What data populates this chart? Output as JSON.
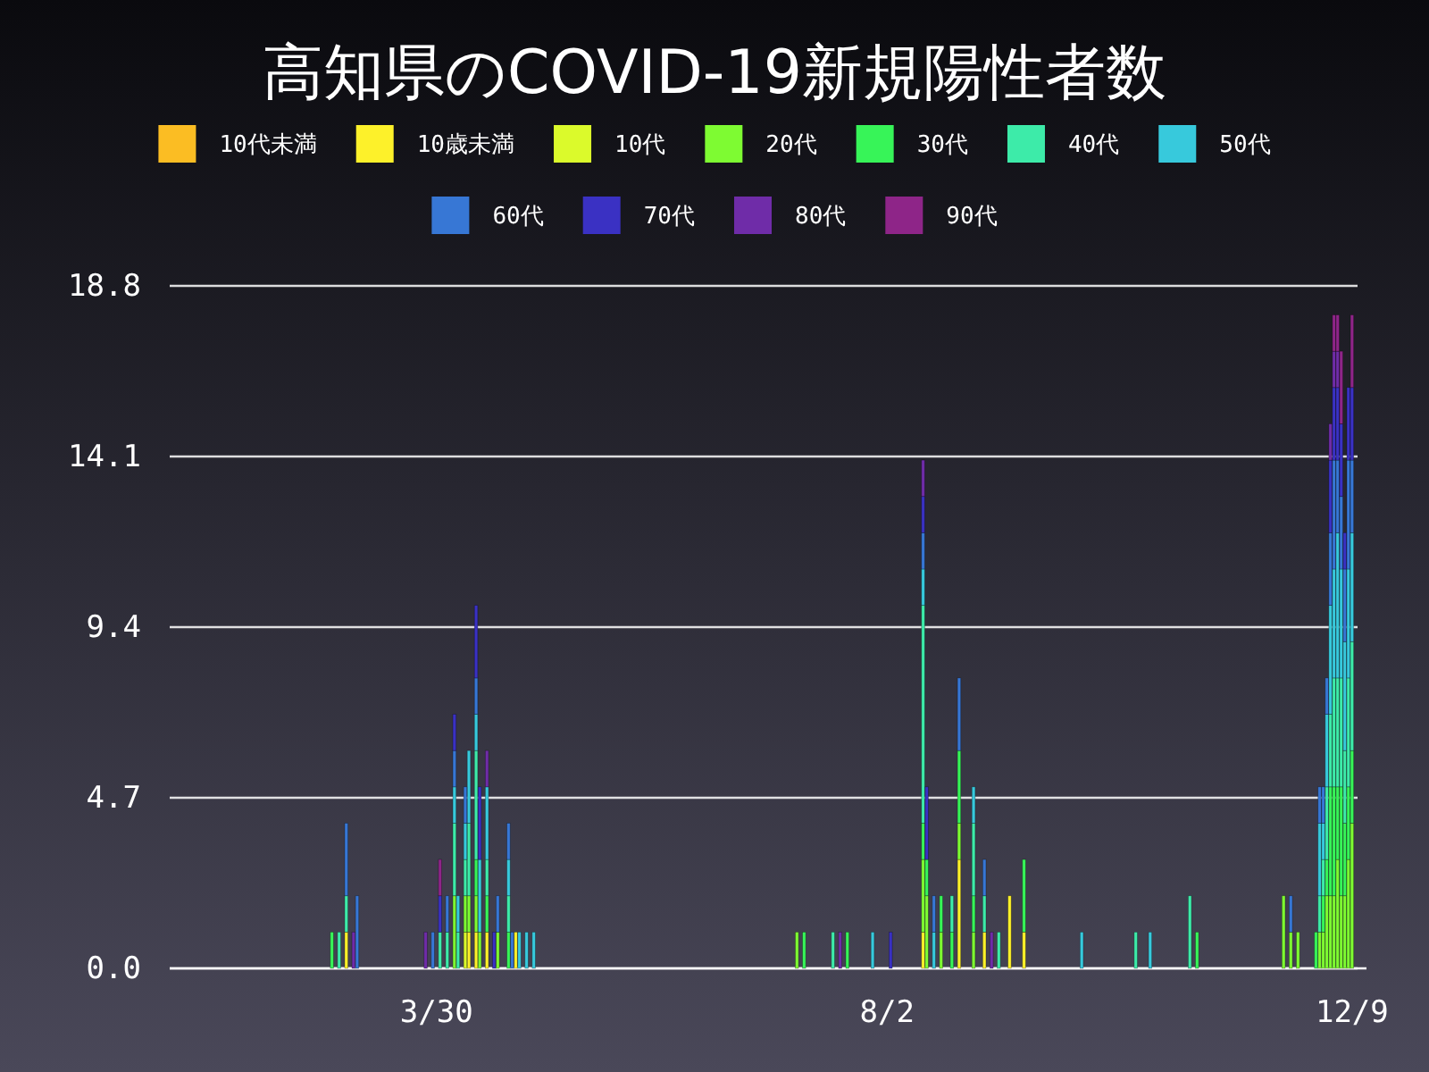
{
  "chart_data": {
    "type": "bar",
    "title": "高知県のCOVID-19新規陽性者数",
    "stacked": true,
    "legend": "top",
    "grid": "y",
    "x": [
      "--03-01",
      "--03-03",
      "--03-05",
      "--03-07",
      "--03-08",
      "--03-27",
      "--03-29",
      "--03-31",
      "--04-02",
      "--04-04",
      "--04-05",
      "--04-07",
      "--04-08",
      "--04-10",
      "--04-11",
      "--04-13",
      "--04-15",
      "--04-16",
      "--04-19",
      "--04-20",
      "--04-21",
      "--04-22",
      "--04-24",
      "--04-26",
      "--07-08",
      "--07-10",
      "--07-18",
      "--07-20",
      "--07-22",
      "--07-29",
      "--08-03",
      "--08-12",
      "--08-13",
      "--08-15",
      "--08-17",
      "--08-20",
      "--08-22",
      "--08-26",
      "--08-29",
      "--08-31",
      "--09-02",
      "--09-05",
      "--09-09",
      "--09-25",
      "--10-10",
      "--10-14",
      "--10-25",
      "--10-27",
      "--11-20",
      "--11-22",
      "--11-24",
      "--11-29",
      "--11-30",
      "--12-01",
      "--12-02",
      "--12-03",
      "--12-04",
      "--12-05",
      "--12-06",
      "--12-07",
      "--12-08",
      "--12-09"
    ],
    "xlim": [
      "--01-16",
      "--12-13"
    ],
    "xticks": [
      {
        "value": "--03-30",
        "label": "3/30"
      },
      {
        "value": "--08-02",
        "label": "8/2"
      },
      {
        "value": "--12-09",
        "label": "12/9"
      }
    ],
    "ylim": [
      0,
      18.8
    ],
    "yticks": [
      {
        "value": 0,
        "label": "0.0"
      },
      4.7,
      9.4,
      14.1,
      18.8
    ],
    "series": [
      {
        "name": "10代未満",
        "color": "#fbbd23",
        "values": [
          0,
          0,
          0,
          0,
          0,
          0,
          0,
          0,
          0,
          0,
          0,
          0,
          0,
          0,
          0,
          0,
          0,
          0,
          0,
          0,
          0,
          0,
          0,
          0,
          0,
          0,
          0,
          0,
          0,
          0,
          0,
          0,
          0,
          0,
          0,
          0,
          0,
          0,
          0,
          0,
          0,
          0,
          0,
          0,
          0,
          0,
          0,
          0,
          0,
          0,
          0,
          0,
          0,
          0,
          0,
          0,
          0,
          0,
          0,
          0,
          0,
          0
        ]
      },
      {
        "name": "10歳未満",
        "color": "#fdf12a",
        "values": [
          0,
          0,
          1,
          0,
          0,
          0,
          0,
          0,
          0,
          0,
          0,
          0,
          1,
          1,
          0,
          1,
          0,
          0,
          0,
          0,
          1,
          0,
          0,
          0,
          0,
          0,
          0,
          0,
          0,
          0,
          0,
          1,
          0,
          0,
          0,
          0,
          3,
          0,
          1,
          0,
          0,
          2,
          1,
          0,
          0,
          0,
          0,
          0,
          0,
          0,
          0,
          0,
          0,
          0,
          0,
          0,
          0,
          0,
          0,
          0,
          0,
          0
        ]
      },
      {
        "name": "10代",
        "color": "#dbfa2b",
        "values": [
          0,
          0,
          0,
          0,
          0,
          0,
          0,
          0,
          0,
          0,
          0,
          1,
          0,
          0,
          0,
          0,
          0,
          0,
          0,
          0,
          0,
          0,
          0,
          0,
          0,
          0,
          0,
          0,
          0,
          0,
          0,
          0,
          0,
          0,
          0,
          0,
          0,
          0,
          0,
          0,
          0,
          0,
          0,
          0,
          0,
          0,
          0,
          0,
          0,
          0,
          0,
          0,
          0,
          0,
          0,
          0,
          0,
          0,
          0,
          0,
          0,
          0
        ]
      },
      {
        "name": "20代",
        "color": "#7efb32",
        "values": [
          0,
          0,
          0,
          0,
          0,
          0,
          0,
          0,
          0,
          2,
          0,
          1,
          1,
          1,
          1,
          0,
          0,
          1,
          0,
          0,
          0,
          0,
          0,
          0,
          1,
          0,
          0,
          0,
          0,
          0,
          0,
          2,
          2,
          0,
          1,
          0,
          1,
          1,
          0,
          0,
          0,
          0,
          0,
          0,
          0,
          0,
          0,
          0,
          2,
          1,
          1,
          0,
          1,
          1,
          2,
          2,
          2,
          3,
          2,
          2,
          3,
          4
        ]
      },
      {
        "name": "30代",
        "color": "#37f458",
        "values": [
          1,
          0,
          0,
          0,
          0,
          0,
          0,
          0,
          0,
          0,
          0,
          0,
          0,
          1,
          0,
          1,
          0,
          0,
          1,
          0,
          0,
          0,
          0,
          0,
          0,
          1,
          0,
          0,
          1,
          0,
          0,
          1,
          1,
          0,
          1,
          1,
          2,
          1,
          0,
          0,
          0,
          0,
          2,
          0,
          0,
          0,
          0,
          1,
          0,
          0,
          0,
          1,
          0,
          1,
          1,
          3,
          3,
          2,
          3,
          2,
          2,
          2
        ]
      },
      {
        "name": "40代",
        "color": "#3deba9",
        "values": [
          0,
          1,
          1,
          0,
          0,
          0,
          0,
          1,
          1,
          2,
          1,
          1,
          2,
          3,
          0,
          1,
          0,
          0,
          1,
          0,
          0,
          0,
          0,
          0,
          0,
          0,
          1,
          0,
          0,
          0,
          0,
          6,
          0,
          0,
          0,
          1,
          0,
          2,
          1,
          0,
          1,
          0,
          0,
          0,
          1,
          0,
          2,
          0,
          0,
          0,
          0,
          0,
          1,
          1,
          2,
          2,
          3,
          3,
          3,
          2,
          3,
          3
        ]
      },
      {
        "name": "50代",
        "color": "#37c9dc",
        "values": [
          0,
          0,
          0,
          0,
          0,
          0,
          0,
          0,
          0,
          1,
          1,
          1,
          2,
          1,
          2,
          2,
          0,
          0,
          1,
          0,
          0,
          1,
          1,
          1,
          0,
          0,
          0,
          0,
          0,
          1,
          0,
          1,
          0,
          1,
          0,
          0,
          0,
          1,
          0,
          0,
          0,
          0,
          0,
          1,
          0,
          1,
          0,
          0,
          0,
          0,
          0,
          0,
          2,
          1,
          2,
          3,
          3,
          4,
          3,
          3,
          3,
          3
        ]
      },
      {
        "name": "60代",
        "color": "#3777d5",
        "values": [
          0,
          0,
          2,
          0,
          2,
          0,
          1,
          0,
          1,
          1,
          0,
          1,
          0,
          1,
          0,
          0,
          0,
          1,
          1,
          1,
          0,
          0,
          0,
          0,
          0,
          0,
          0,
          0,
          0,
          0,
          0,
          1,
          0,
          1,
          0,
          0,
          2,
          0,
          1,
          0,
          0,
          0,
          0,
          0,
          0,
          0,
          0,
          0,
          0,
          1,
          0,
          0,
          1,
          1,
          1,
          2,
          3,
          2,
          2,
          2,
          3,
          2
        ]
      },
      {
        "name": "70代",
        "color": "#3a31c3",
        "values": [
          0,
          0,
          0,
          0,
          0,
          0,
          0,
          1,
          0,
          1,
          0,
          0,
          0,
          2,
          2,
          0,
          1,
          0,
          0,
          0,
          0,
          0,
          0,
          0,
          0,
          0,
          0,
          0,
          0,
          0,
          1,
          1,
          2,
          0,
          0,
          0,
          0,
          0,
          0,
          0,
          0,
          0,
          0,
          0,
          0,
          0,
          0,
          0,
          0,
          0,
          0,
          0,
          0,
          0,
          0,
          2,
          2,
          2,
          2,
          1,
          2,
          2
        ]
      },
      {
        "name": "80代",
        "color": "#6f2ca8",
        "values": [
          0,
          0,
          0,
          1,
          0,
          1,
          0,
          0,
          0,
          0,
          0,
          0,
          0,
          0,
          0,
          1,
          0,
          0,
          0,
          0,
          0,
          0,
          0,
          0,
          0,
          0,
          0,
          1,
          0,
          0,
          0,
          1,
          0,
          0,
          0,
          0,
          0,
          0,
          0,
          1,
          0,
          0,
          0,
          0,
          0,
          0,
          0,
          0,
          0,
          0,
          0,
          0,
          0,
          0,
          0,
          1,
          1,
          1,
          0,
          0,
          0,
          0
        ]
      },
      {
        "name": "90代",
        "color": "#8e2588",
        "values": [
          0,
          0,
          0,
          0,
          0,
          0,
          0,
          1,
          0,
          0,
          0,
          0,
          0,
          0,
          0,
          0,
          0,
          0,
          0,
          0,
          0,
          0,
          0,
          0,
          0,
          0,
          0,
          0,
          0,
          0,
          0,
          0,
          0,
          0,
          0,
          0,
          0,
          0,
          0,
          0,
          0,
          0,
          0,
          0,
          0,
          0,
          0,
          0,
          0,
          0,
          0,
          0,
          0,
          0,
          0,
          0,
          1,
          1,
          2,
          0,
          0,
          2
        ]
      }
    ]
  }
}
